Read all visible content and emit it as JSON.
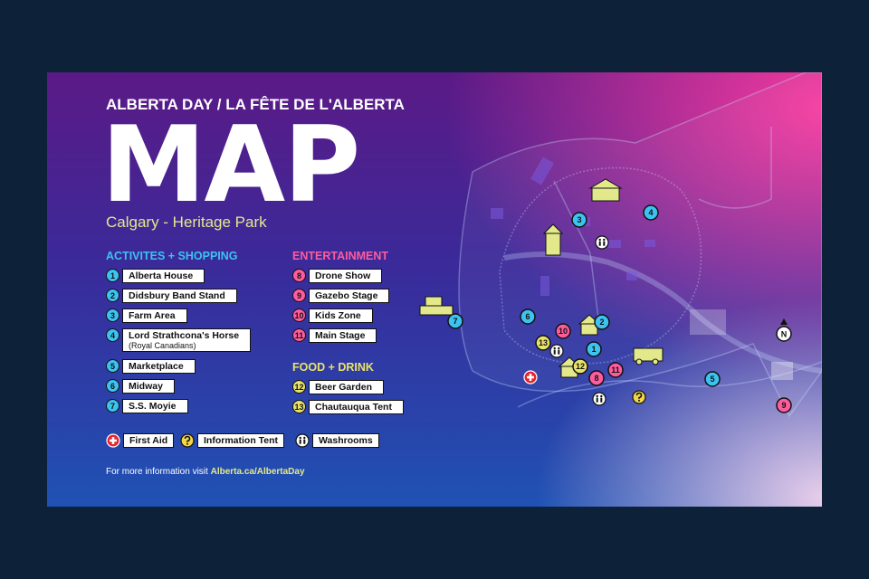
{
  "header": {
    "kicker": "ALBERTA DAY / LA FÊTE DE L'ALBERTA",
    "title": "MAP",
    "subtitle": "Calgary - Heritage Park"
  },
  "legend": {
    "activities": {
      "heading": "ACTIVITES + SHOPPING",
      "items": [
        {
          "number": 1,
          "label": "Alberta House"
        },
        {
          "number": 2,
          "label": "Didsbury Band Stand"
        },
        {
          "number": 3,
          "label": "Farm Area"
        },
        {
          "number": 4,
          "label": "Lord Strathcona's Horse",
          "note": "(Royal Canadians)"
        },
        {
          "number": 5,
          "label": "Marketplace"
        },
        {
          "number": 6,
          "label": "Midway"
        },
        {
          "number": 7,
          "label": "S.S. Moyie"
        }
      ]
    },
    "entertainment": {
      "heading": "ENTERTAINMENT",
      "items": [
        {
          "number": 8,
          "label": "Drone Show"
        },
        {
          "number": 9,
          "label": "Gazebo Stage"
        },
        {
          "number": 10,
          "label": "Kids Zone"
        },
        {
          "number": 11,
          "label": "Main Stage"
        }
      ]
    },
    "food": {
      "heading": "FOOD + DRINK",
      "items": [
        {
          "number": 12,
          "label": "Beer Garden"
        },
        {
          "number": 13,
          "label": "Chautauqua Tent"
        }
      ]
    },
    "services": [
      {
        "label": "First Aid"
      },
      {
        "label": "Information Tent"
      },
      {
        "label": "Washrooms"
      }
    ]
  },
  "footer": {
    "text": "For more information visit",
    "link": "Alberta.ca/AlbertaDay"
  },
  "map": {
    "north": "N"
  }
}
